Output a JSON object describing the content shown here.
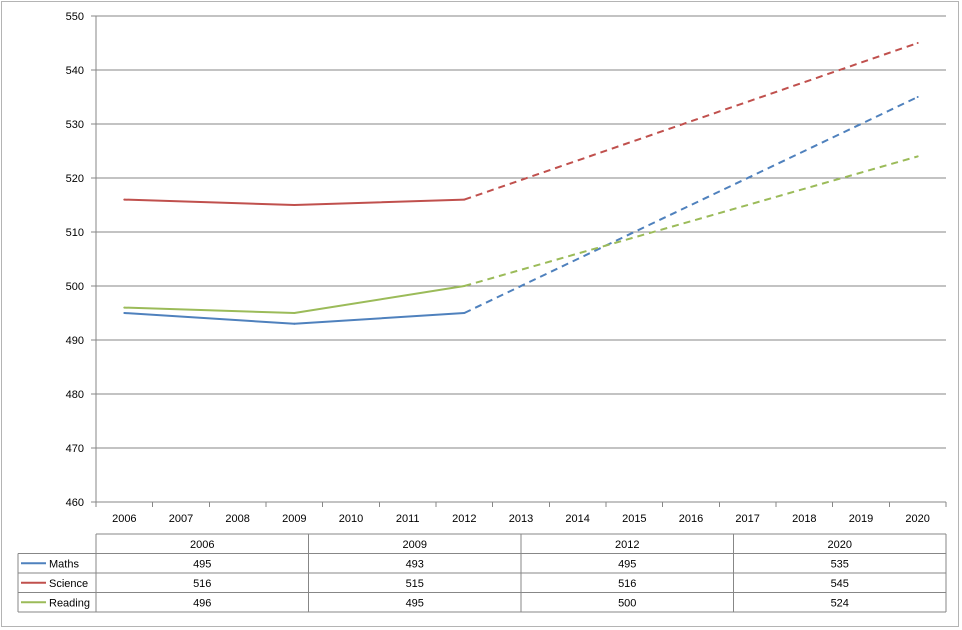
{
  "chart_data": {
    "type": "line",
    "title": "",
    "xlabel": "",
    "ylabel": "",
    "ylim": [
      460,
      550
    ],
    "ytick_step": 10,
    "yticks": [
      "460",
      "470",
      "480",
      "490",
      "500",
      "510",
      "520",
      "530",
      "540",
      "550"
    ],
    "grid": true,
    "categories": [
      "2006",
      "2007",
      "2008",
      "2009",
      "2010",
      "2011",
      "2012",
      "2013",
      "2014",
      "2015",
      "2016",
      "2017",
      "2018",
      "2019",
      "2020"
    ],
    "table_columns": [
      "2006",
      "2009",
      "2012",
      "2020"
    ],
    "legend_position": "data-table",
    "series": [
      {
        "name": "Maths",
        "color": "#4f81bd",
        "x": [
          "2006",
          "2009",
          "2012",
          "2020"
        ],
        "values": [
          495,
          493,
          495,
          535
        ],
        "table_values": [
          "495",
          "493",
          "495",
          "535"
        ],
        "projected_from": "2012"
      },
      {
        "name": "Science",
        "color": "#c0504d",
        "x": [
          "2006",
          "2009",
          "2012",
          "2020"
        ],
        "values": [
          516,
          515,
          516,
          545
        ],
        "table_values": [
          "516",
          "515",
          "516",
          "545"
        ],
        "projected_from": "2012"
      },
      {
        "name": "Reading",
        "color": "#9bbb59",
        "x": [
          "2006",
          "2009",
          "2012",
          "2020"
        ],
        "values": [
          496,
          495,
          500,
          524
        ],
        "table_values": [
          "496",
          "495",
          "500",
          "524"
        ],
        "projected_from": "2012"
      }
    ]
  }
}
